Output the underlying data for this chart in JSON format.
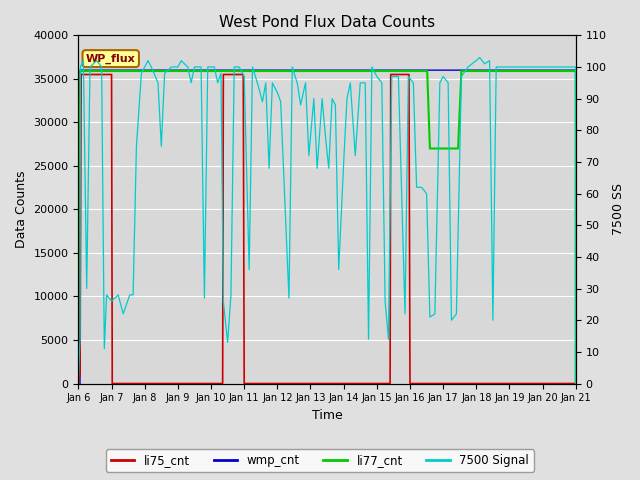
{
  "title": "West Pond Flux Data Counts",
  "xlabel": "Time",
  "ylabel_left": "Data Counts",
  "ylabel_right": "7500 SS",
  "x_tick_labels": [
    "Jan 6",
    "Jan 7",
    "Jan 8",
    "Jan 9",
    "Jan 10",
    "Jan 11",
    "Jan 12",
    "Jan 13",
    "Jan 14",
    "Jan 15",
    "Jan 16",
    "Jan 17",
    "Jan 18",
    "Jan 19",
    "Jan 20",
    "Jan 21"
  ],
  "background_color": "#e0e0e0",
  "plot_bg_color": "#d8d8d8",
  "legend_label": "WP_flux",
  "legend_box_color": "#ffff99",
  "legend_box_edge": "#aa6600",
  "colors": {
    "li75_cnt": "#cc0000",
    "wmp_cnt": "#0000cc",
    "li77_cnt": "#00cc00",
    "7500_signal": "#00cccc"
  },
  "series_labels": [
    "li75_cnt",
    "wmp_cnt",
    "li77_cnt",
    "7500 Signal"
  ],
  "yticks_left": [
    0,
    5000,
    10000,
    15000,
    20000,
    25000,
    30000,
    35000,
    40000
  ],
  "yticks_right": [
    0,
    10,
    20,
    30,
    40,
    50,
    60,
    70,
    80,
    90,
    100,
    110
  ]
}
